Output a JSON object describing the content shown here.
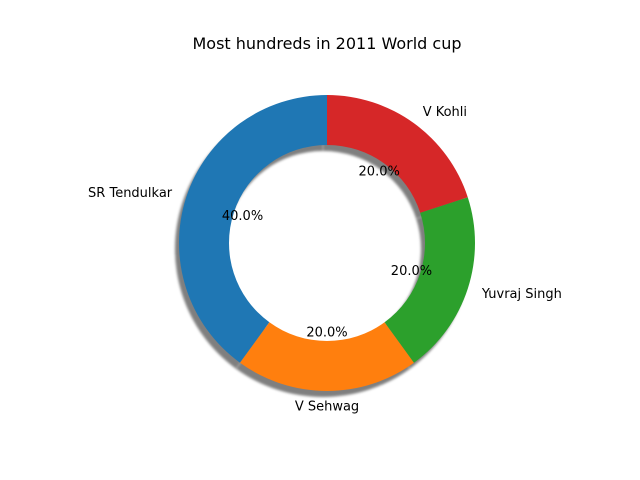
{
  "chart_data": {
    "type": "pie",
    "variant": "donut",
    "title": "Most hundreds in 2011 World cup",
    "labels": [
      "SR Tendulkar",
      "V Sehwag",
      "Yuvraj Singh",
      "V Kohli"
    ],
    "values": [
      2,
      1,
      1,
      1
    ],
    "percent_labels": [
      "40.0%",
      "20.0%",
      "20.0%",
      "20.0%"
    ],
    "colors": [
      "#1f77b4",
      "#ff7f0e",
      "#2ca02c",
      "#d62728"
    ],
    "start_angle_deg": 90,
    "direction": "counterclockwise",
    "shadow": true,
    "legend": "none"
  }
}
